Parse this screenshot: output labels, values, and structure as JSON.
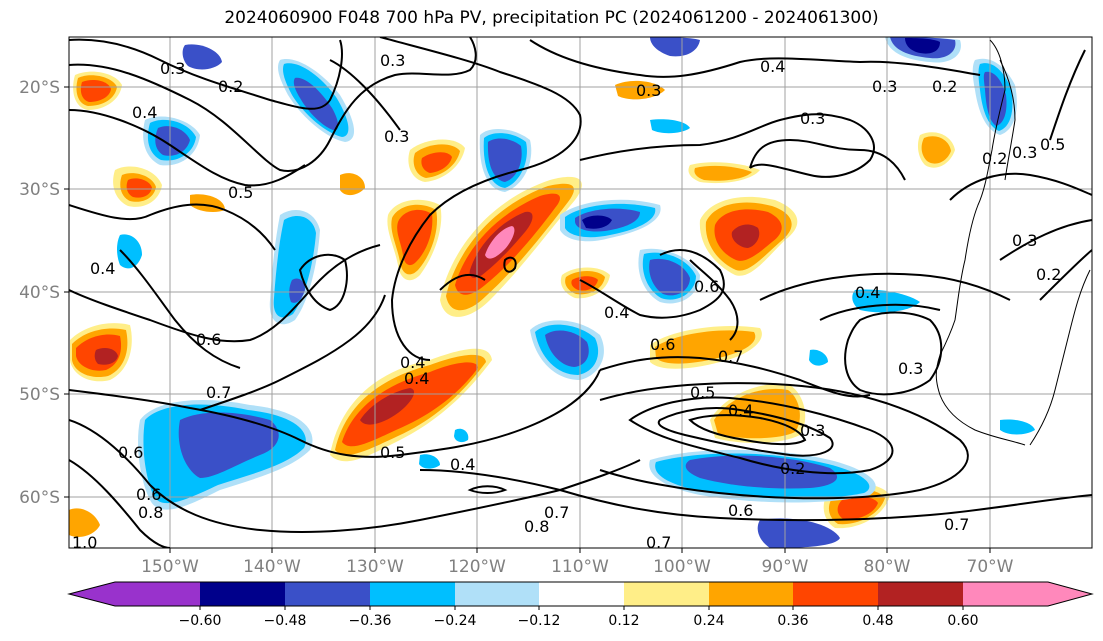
{
  "title": "2024060900 F048 700 hPa PV, precipitation PC (2024061200 - 2024061300)",
  "longitude_labels": [
    "150°W",
    "140°W",
    "130°W",
    "120°W",
    "110°W",
    "100°W",
    "90°W",
    "80°W",
    "70°W"
  ],
  "latitude_labels": [
    "20°S",
    "30°S",
    "40°S",
    "50°S",
    "60°S"
  ],
  "colorbar": {
    "tick_labels": [
      "−0.60",
      "−0.48",
      "−0.36",
      "−0.24",
      "−0.12",
      "0.12",
      "0.24",
      "0.36",
      "0.48",
      "0.60"
    ],
    "colors": [
      "#9932cc",
      "#00008b",
      "#3a50c8",
      "#00bfff",
      "#b0e0f8",
      "#ffffff",
      "#ffee88",
      "#ffa500",
      "#ff4500",
      "#b22222",
      "#ff88bb"
    ]
  },
  "contour_labels": [
    "0.3",
    "0.2",
    "0.4",
    "0.5",
    "0.3",
    "0.3",
    "0.4",
    "0.3",
    "0.3",
    "0.2",
    "0.3",
    "0.2",
    "0.3",
    "0.5",
    "0.4",
    "0.6",
    "0.4",
    "0.4",
    "0.6",
    "0.7",
    "0.6",
    "0.4",
    "0.7",
    "0.5",
    "0.4",
    "0.3",
    "0.6",
    "0.2",
    "0.3",
    "0.4",
    "0.5",
    "0.8",
    "0.7",
    "0.7",
    "0.6",
    "0.7",
    "0.6",
    "0.8",
    "1.0",
    "0.4",
    "0.2",
    "0.3"
  ]
}
